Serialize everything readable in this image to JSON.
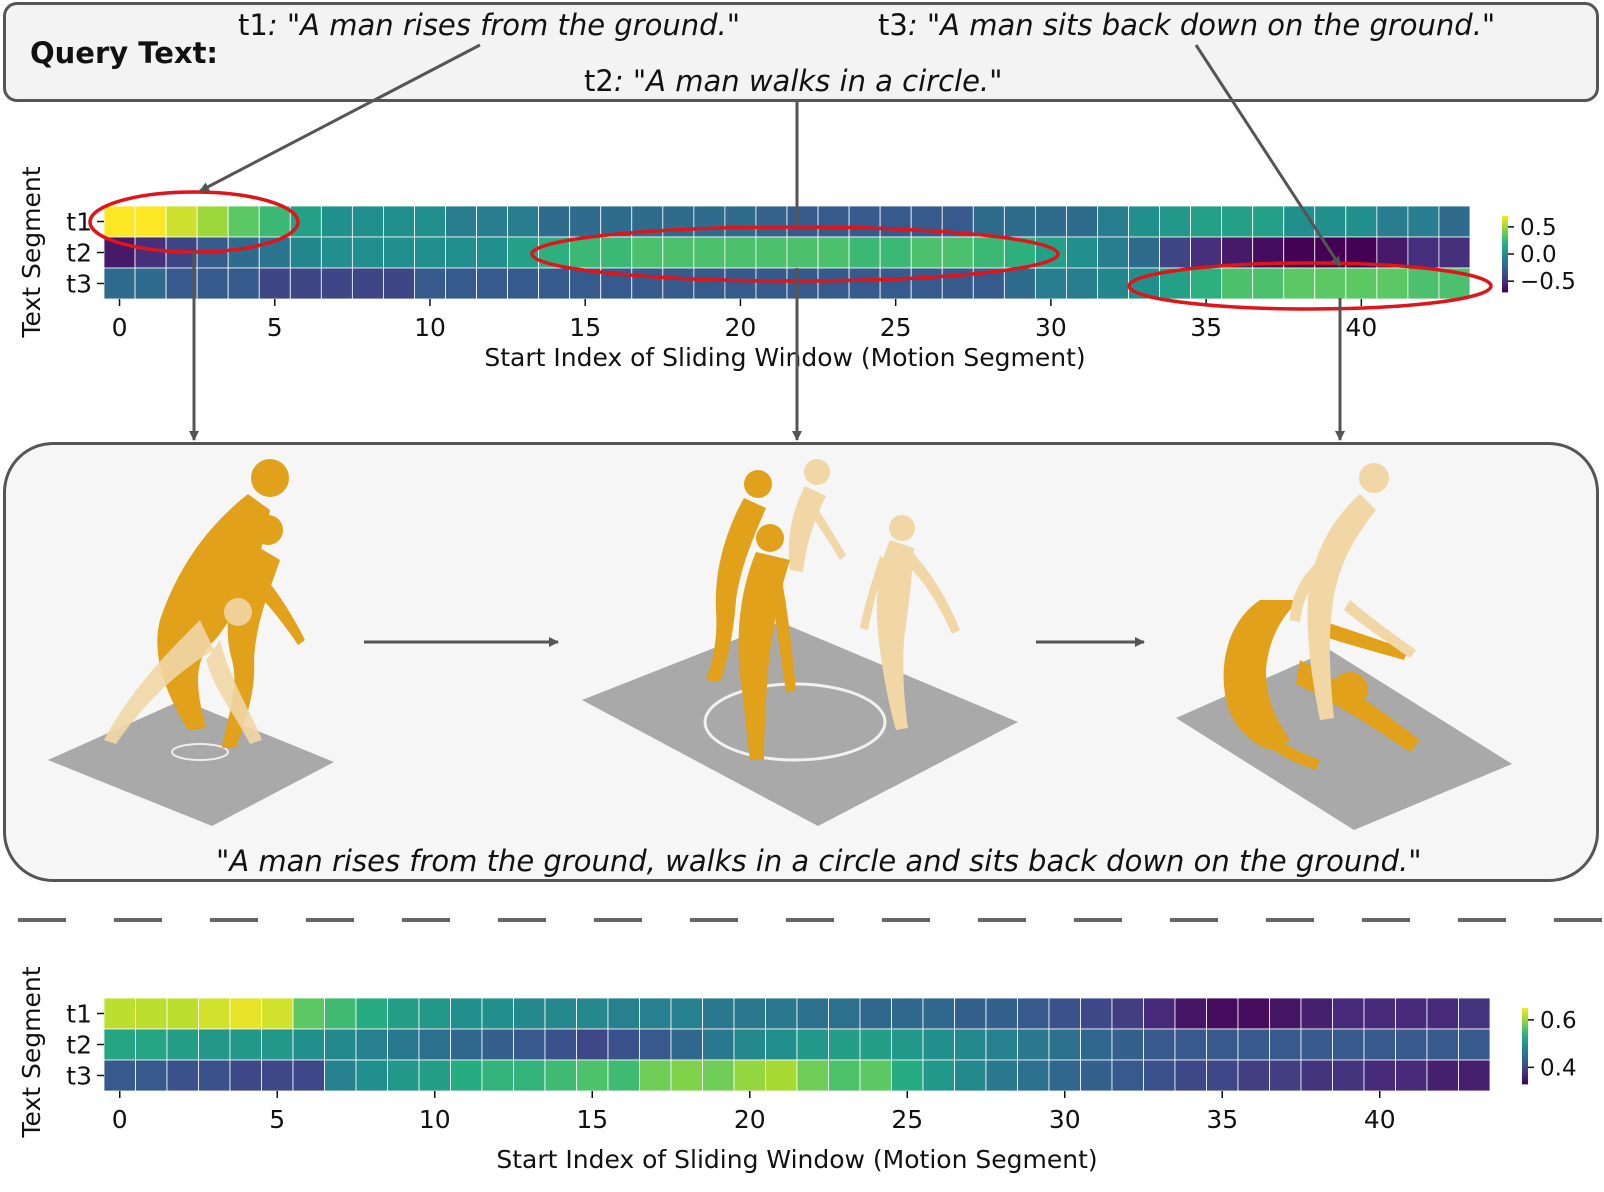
{
  "query": {
    "label": "Query Text:",
    "t1": {
      "id": "t1",
      "sep": ": ",
      "text": "\"A man rises from the ground.\""
    },
    "t2": {
      "id": "t2",
      "sep": ": ",
      "text": "\"A man walks in a circle.\""
    },
    "t3": {
      "id": "t3",
      "sep": ": ",
      "text": "\"A man sits back down on the ground.\""
    }
  },
  "panel": {
    "caption": "\"A man rises from the ground, walks in a circle and sits back down on the ground.\""
  },
  "colors": {
    "ellipse": "#e0141b",
    "arrow": "#555555",
    "figure_dark": "#e2a11a",
    "figure_light": "#f1d7a6",
    "floor": "#a9a9a9"
  },
  "chart_data": [
    {
      "type": "heatmap",
      "rows": [
        "t1",
        "t2",
        "t3"
      ],
      "columns": "0-43",
      "xlabel": "Start Index of Sliding Window (Motion Segment)",
      "ylabel": "Text Segment",
      "xticks": [
        0,
        5,
        10,
        15,
        20,
        25,
        30,
        35,
        40
      ],
      "colorbar": {
        "ticks": [
          0.5,
          0.0,
          -0.5
        ],
        "tick_labels": [
          "0.5",
          "0.0",
          "−0.5"
        ],
        "range": [
          -0.7,
          0.7
        ]
      },
      "colormap": "viridis",
      "values": [
        [
          0.7,
          0.7,
          0.6,
          0.5,
          0.35,
          0.25,
          0.1,
          0.0,
          0.0,
          0.0,
          0.0,
          -0.1,
          -0.1,
          -0.1,
          -0.2,
          -0.2,
          -0.2,
          -0.2,
          -0.2,
          -0.2,
          -0.2,
          -0.25,
          -0.3,
          -0.3,
          -0.3,
          -0.3,
          -0.3,
          -0.3,
          -0.2,
          -0.2,
          -0.2,
          -0.2,
          -0.1,
          0.0,
          0.05,
          0.1,
          0.1,
          0.1,
          0.0,
          0.0,
          0.0,
          -0.1,
          -0.1,
          -0.2
        ],
        [
          -0.6,
          -0.5,
          -0.4,
          -0.3,
          -0.2,
          -0.15,
          -0.05,
          0.0,
          0.0,
          0.0,
          0.0,
          0.0,
          0.0,
          0.1,
          0.2,
          0.25,
          0.25,
          0.3,
          0.3,
          0.3,
          0.3,
          0.3,
          0.3,
          0.3,
          0.25,
          0.25,
          0.3,
          0.3,
          0.25,
          0.2,
          0.1,
          0.0,
          -0.1,
          -0.2,
          -0.4,
          -0.5,
          -0.6,
          -0.65,
          -0.7,
          -0.7,
          -0.7,
          -0.6,
          -0.5,
          -0.5
        ],
        [
          -0.2,
          -0.2,
          -0.3,
          -0.3,
          -0.3,
          -0.4,
          -0.4,
          -0.4,
          -0.4,
          -0.4,
          -0.3,
          -0.3,
          -0.3,
          -0.3,
          -0.3,
          -0.3,
          -0.3,
          -0.3,
          -0.3,
          -0.3,
          -0.3,
          -0.3,
          -0.3,
          -0.3,
          -0.3,
          -0.3,
          -0.3,
          -0.3,
          -0.3,
          -0.2,
          -0.1,
          -0.1,
          -0.05,
          0.0,
          0.1,
          0.2,
          0.3,
          0.3,
          0.35,
          0.35,
          0.35,
          0.35,
          0.3,
          0.3
        ]
      ]
    },
    {
      "type": "heatmap",
      "rows": [
        "t1",
        "t2",
        "t3"
      ],
      "columns": "0-43",
      "xlabel": "Start Index of Sliding Window (Motion Segment)",
      "ylabel": "Text Segment",
      "xticks": [
        0,
        5,
        10,
        15,
        20,
        25,
        30,
        35,
        40
      ],
      "colorbar": {
        "ticks": [
          0.6,
          0.4
        ],
        "tick_labels": [
          "0.6",
          "0.4"
        ],
        "range": [
          0.33,
          0.65
        ]
      },
      "colormap": "viridis",
      "values": [
        [
          0.62,
          0.62,
          0.62,
          0.63,
          0.64,
          0.63,
          0.57,
          0.55,
          0.53,
          0.51,
          0.5,
          0.49,
          0.49,
          0.48,
          0.48,
          0.48,
          0.47,
          0.47,
          0.47,
          0.46,
          0.46,
          0.46,
          0.45,
          0.45,
          0.44,
          0.44,
          0.44,
          0.43,
          0.43,
          0.42,
          0.41,
          0.4,
          0.39,
          0.37,
          0.35,
          0.34,
          0.34,
          0.35,
          0.36,
          0.37,
          0.37,
          0.37,
          0.37,
          0.38
        ],
        [
          0.52,
          0.52,
          0.51,
          0.5,
          0.5,
          0.5,
          0.49,
          0.48,
          0.47,
          0.46,
          0.45,
          0.44,
          0.43,
          0.42,
          0.41,
          0.4,
          0.41,
          0.42,
          0.44,
          0.46,
          0.48,
          0.49,
          0.5,
          0.51,
          0.51,
          0.5,
          0.49,
          0.48,
          0.47,
          0.46,
          0.45,
          0.44,
          0.43,
          0.42,
          0.42,
          0.42,
          0.42,
          0.42,
          0.42,
          0.42,
          0.42,
          0.42,
          0.42,
          0.42
        ],
        [
          0.42,
          0.42,
          0.41,
          0.41,
          0.4,
          0.4,
          0.4,
          0.47,
          0.49,
          0.5,
          0.51,
          0.53,
          0.54,
          0.54,
          0.55,
          0.56,
          0.55,
          0.58,
          0.59,
          0.58,
          0.6,
          0.61,
          0.58,
          0.56,
          0.57,
          0.53,
          0.5,
          0.48,
          0.46,
          0.45,
          0.44,
          0.43,
          0.42,
          0.41,
          0.4,
          0.4,
          0.39,
          0.39,
          0.38,
          0.38,
          0.37,
          0.37,
          0.36,
          0.36
        ]
      ]
    }
  ]
}
